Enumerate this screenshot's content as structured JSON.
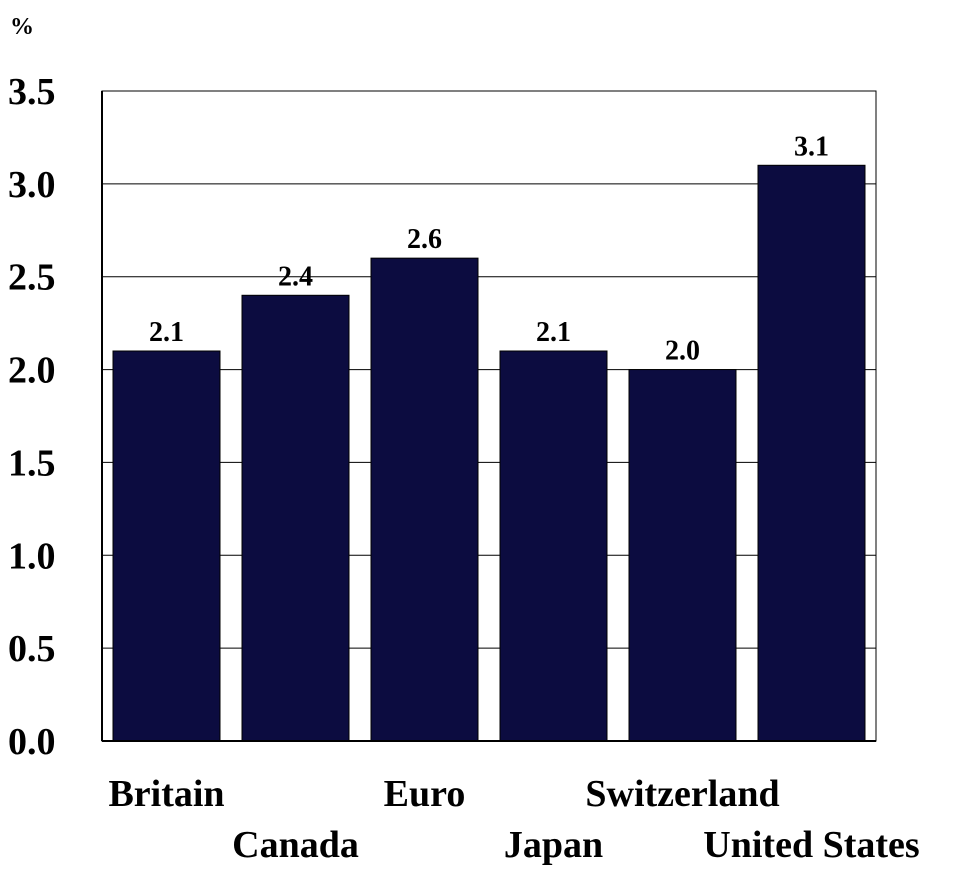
{
  "chart_data": {
    "type": "bar",
    "unit_label": "%",
    "categories": [
      "Britain",
      "Canada",
      "Euro",
      "Japan",
      "Switzerland",
      "United States"
    ],
    "values": [
      2.1,
      2.4,
      2.6,
      2.1,
      2.0,
      3.1
    ],
    "data_labels": [
      "2.1",
      "2.4",
      "2.6",
      "2.1",
      "2.0",
      "3.1"
    ],
    "yticks": [
      "0.0",
      "0.5",
      "1.0",
      "1.5",
      "2.0",
      "2.5",
      "3.0",
      "3.5"
    ],
    "ylim": [
      0,
      3.5
    ],
    "grid": true,
    "bar_color": "#0c0c40",
    "title": "",
    "xlabel": "",
    "ylabel": ""
  }
}
